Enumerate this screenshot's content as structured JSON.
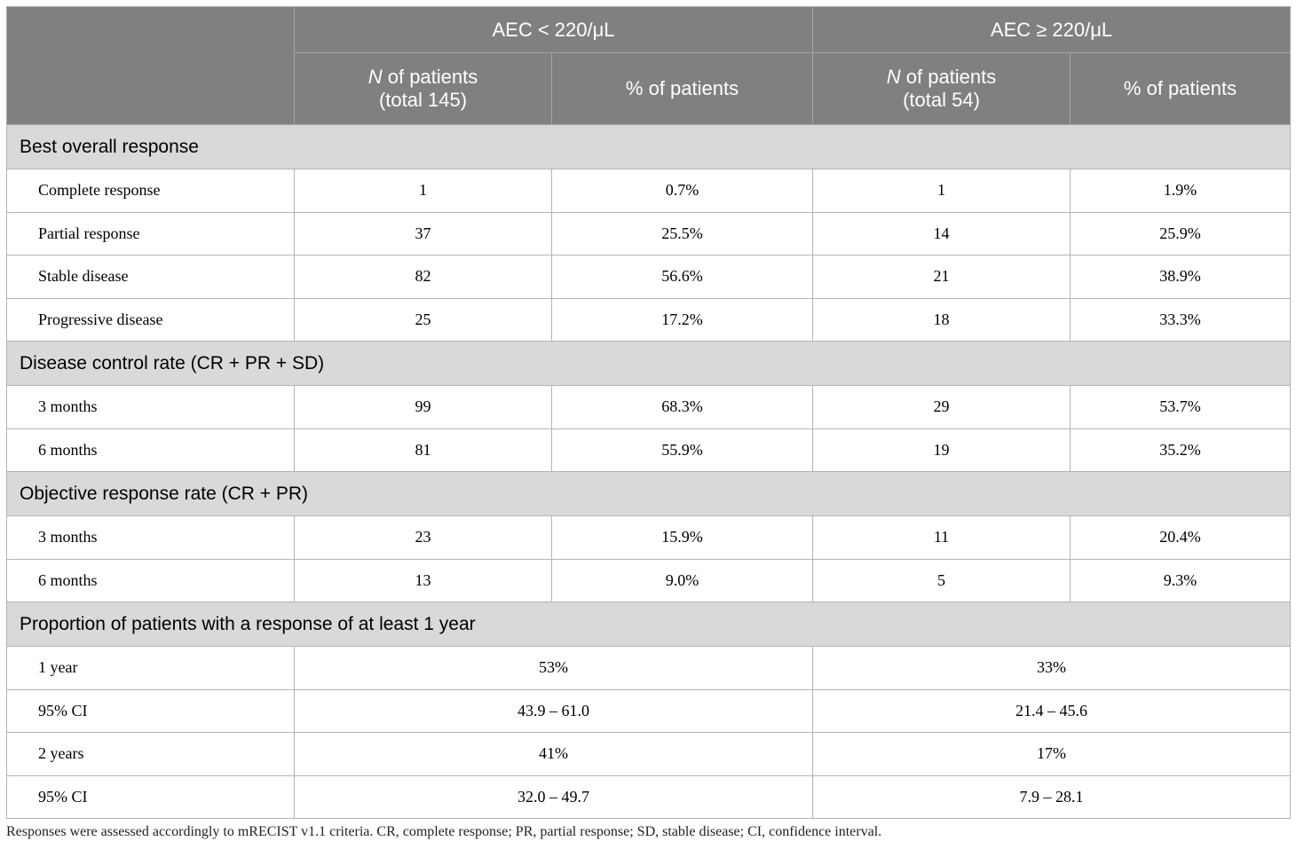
{
  "table": {
    "groups": [
      "AEC < 220/μL",
      "AEC ≥ 220/μL"
    ],
    "subheaders": [
      {
        "italic": "N",
        "text": " of patients",
        "total": "(total 145)"
      },
      {
        "text": "% of patients"
      },
      {
        "italic": "N",
        "text": " of patients",
        "total": "(total 54)"
      },
      {
        "text": "% of patients"
      }
    ],
    "sections": [
      {
        "title": "Best overall response",
        "rows": [
          [
            "Complete response",
            "1",
            "0.7%",
            "1",
            "1.9%"
          ],
          [
            "Partial response",
            "37",
            "25.5%",
            "14",
            "25.9%"
          ],
          [
            "Stable disease",
            "82",
            "56.6%",
            "21",
            "38.9%"
          ],
          [
            "Progressive disease",
            "25",
            "17.2%",
            "18",
            "33.3%"
          ]
        ]
      },
      {
        "title": "Disease control rate (CR + PR + SD)",
        "rows": [
          [
            "3 months",
            "99",
            "68.3%",
            "29",
            "53.7%"
          ],
          [
            "6 months",
            "81",
            "55.9%",
            "19",
            "35.2%"
          ]
        ]
      },
      {
        "title": "Objective response rate (CR + PR)",
        "rows": [
          [
            "3 months",
            "23",
            "15.9%",
            "11",
            "20.4%"
          ],
          [
            "6 months",
            "13",
            "9.0%",
            "5",
            "9.3%"
          ]
        ]
      },
      {
        "title": "Proportion of patients with a response of at least 1 year",
        "rows": [
          [
            "1 year",
            "53%",
            "33%"
          ],
          [
            "95% CI",
            "43.9 – 61.0",
            "21.4 – 45.6"
          ],
          [
            "2 years",
            "41%",
            "17%"
          ],
          [
            "95% CI",
            "32.0 – 49.7",
            "7.9 – 28.1"
          ]
        ]
      }
    ]
  },
  "footnote": "Responses were assessed accordingly to mRECIST v1.1 criteria. CR, complete response; PR, partial response; SD, stable disease; CI, confidence interval."
}
